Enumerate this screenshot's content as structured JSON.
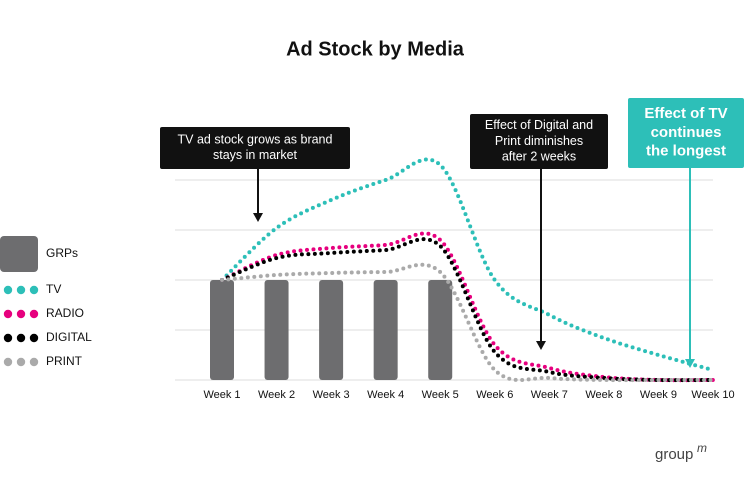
{
  "chart_data": {
    "type": "line",
    "title": "Ad Stock by Media",
    "categories": [
      "Week 1",
      "Week 2",
      "Week 3",
      "Week 4",
      "Week 5",
      "Week 6",
      "Week 7",
      "Week 8",
      "Week 9",
      "Week 10"
    ],
    "ylim": [
      0,
      4.4
    ],
    "yticks": [
      0,
      1,
      2,
      3,
      4
    ],
    "grid": true,
    "tick_labels": false,
    "legend": "left",
    "series": [
      {
        "name": "GRPs",
        "type": "bar",
        "color": "#6d6d6f",
        "values": [
          2,
          2,
          2,
          2,
          2,
          null,
          null,
          null,
          null,
          null
        ]
      },
      {
        "name": "TV",
        "type": "line",
        "color": "#2dbfb8",
        "values": [
          2.0,
          3.04,
          3.6,
          4.0,
          4.3,
          2.0,
          1.3,
          0.84,
          0.5,
          0.2
        ]
      },
      {
        "name": "RADIO",
        "type": "line",
        "color": "#e6007e",
        "values": [
          2.0,
          2.5,
          2.64,
          2.7,
          2.8,
          0.7,
          0.24,
          0.06,
          0,
          0
        ]
      },
      {
        "name": "DIGITAL",
        "type": "line",
        "color": "#000000",
        "values": [
          2.0,
          2.44,
          2.54,
          2.6,
          2.68,
          0.56,
          0.16,
          0.04,
          0,
          0
        ]
      },
      {
        "name": "PRINT",
        "type": "line",
        "color": "#aaaaaa",
        "values": [
          2.0,
          2.1,
          2.14,
          2.16,
          2.16,
          0.2,
          0.04,
          0,
          0,
          0
        ]
      }
    ],
    "annotations": [
      {
        "lines": [
          "TV ad stock grows as brand",
          "stays in market"
        ],
        "color": "#111111"
      },
      {
        "lines": [
          "Effect of Digital and",
          "Print diminishes",
          "after 2 weeks"
        ],
        "color": "#111111"
      },
      {
        "lines": [
          "Effect of TV",
          "continues",
          "the longest"
        ],
        "color": "#2dbfb8"
      }
    ]
  },
  "branding": {
    "text": "group",
    "mark": "m"
  }
}
